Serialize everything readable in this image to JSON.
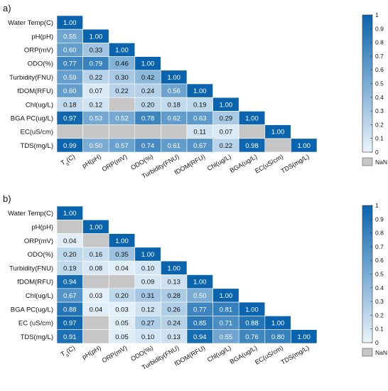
{
  "chart_data": [
    {
      "type": "heatmap",
      "panel_label": "a)",
      "row_labels": [
        "Water Temp(C)",
        "pH(pH)",
        "ORP(mV)",
        "ODO(%)",
        "Turbidity(FNU)",
        "fDOM(RFU)",
        "Chl(ug/L)",
        "BGA PC(ug/L)",
        "EC(uS/cm)",
        "TDS(mg/L)"
      ],
      "col_labels": [
        "T_s(C)",
        "pH(pH)",
        "ORP(mV)",
        "ODO(%)",
        "Turbidity(FNU)",
        "fDOM(RFU)",
        "Chl(ug/L)",
        "BGA(ug/L)",
        "EC(uS/cm)",
        "TDS(mg/L)"
      ],
      "values": [
        [
          1.0
        ],
        [
          0.55,
          1.0
        ],
        [
          0.6,
          0.33,
          1.0
        ],
        [
          0.77,
          0.79,
          0.46,
          1.0
        ],
        [
          0.59,
          0.22,
          0.3,
          0.42,
          1.0
        ],
        [
          0.6,
          0.07,
          0.22,
          0.24,
          0.56,
          1.0
        ],
        [
          0.18,
          0.12,
          null,
          0.2,
          0.18,
          0.19,
          1.0
        ],
        [
          0.97,
          0.53,
          0.52,
          0.78,
          0.62,
          0.63,
          0.29,
          1.0
        ],
        [
          null,
          null,
          null,
          null,
          null,
          0.11,
          0.07,
          null,
          1.0
        ],
        [
          0.99,
          0.5,
          0.57,
          0.74,
          0.61,
          0.67,
          0.22,
          0.98,
          null,
          1.0
        ]
      ],
      "colorbar": {
        "ticks": [
          "1",
          "0.9",
          "0.8",
          "0.7",
          "0.6",
          "0.5",
          "0.4",
          "0.3",
          "0.2",
          "0.1",
          "0"
        ],
        "range": [
          0,
          1
        ],
        "nan_label": "NaN"
      }
    },
    {
      "type": "heatmap",
      "panel_label": "b)",
      "row_labels": [
        "Water Temp(C)",
        "pH(pH)",
        "ORP(mV)",
        "ODO(%)",
        "Turbidity(FNU)",
        "fDOM(RFU)",
        "Chl(ug/L)",
        "BGA PC(ug/L)",
        "EC (uS/cm)",
        "TDS(mg/L)"
      ],
      "col_labels": [
        "T_s(C)",
        "pH(pH)",
        "ORP(mV)",
        "ODO(%)",
        "Turbidity(FNU)",
        "fDOM(RFU)",
        "Chl(ug/L)",
        "BGA(ug/L)",
        "EC(uS/cm)",
        "TDS(mg/L)"
      ],
      "values": [
        [
          1.0
        ],
        [
          null,
          1.0
        ],
        [
          0.04,
          null,
          1.0
        ],
        [
          0.2,
          0.16,
          0.35,
          1.0
        ],
        [
          0.19,
          0.08,
          0.04,
          0.1,
          1.0
        ],
        [
          0.94,
          null,
          null,
          0.09,
          0.13,
          1.0
        ],
        [
          0.67,
          0.03,
          0.2,
          0.31,
          0.28,
          0.5,
          1.0
        ],
        [
          0.88,
          0.04,
          0.03,
          0.12,
          0.26,
          0.77,
          0.81,
          1.0
        ],
        [
          0.97,
          null,
          0.05,
          0.27,
          0.24,
          0.85,
          0.71,
          0.88,
          1.0
        ],
        [
          0.91,
          null,
          0.05,
          0.1,
          0.13,
          0.94,
          0.55,
          0.76,
          0.8,
          1.0
        ]
      ],
      "colorbar": {
        "ticks": [
          "1",
          "0.9",
          "0.8",
          "0.7",
          "0.6",
          "0.5",
          "0.4",
          "0.3",
          "0.2",
          "0.1",
          "0"
        ],
        "range": [
          0,
          1
        ],
        "nan_label": "NaN"
      }
    }
  ],
  "colors": {
    "low": "#eaf4fb",
    "high": "#0a64ad",
    "nan": "#c6c6c6",
    "light_text": "#ffffff",
    "dark_text": "#111111"
  }
}
